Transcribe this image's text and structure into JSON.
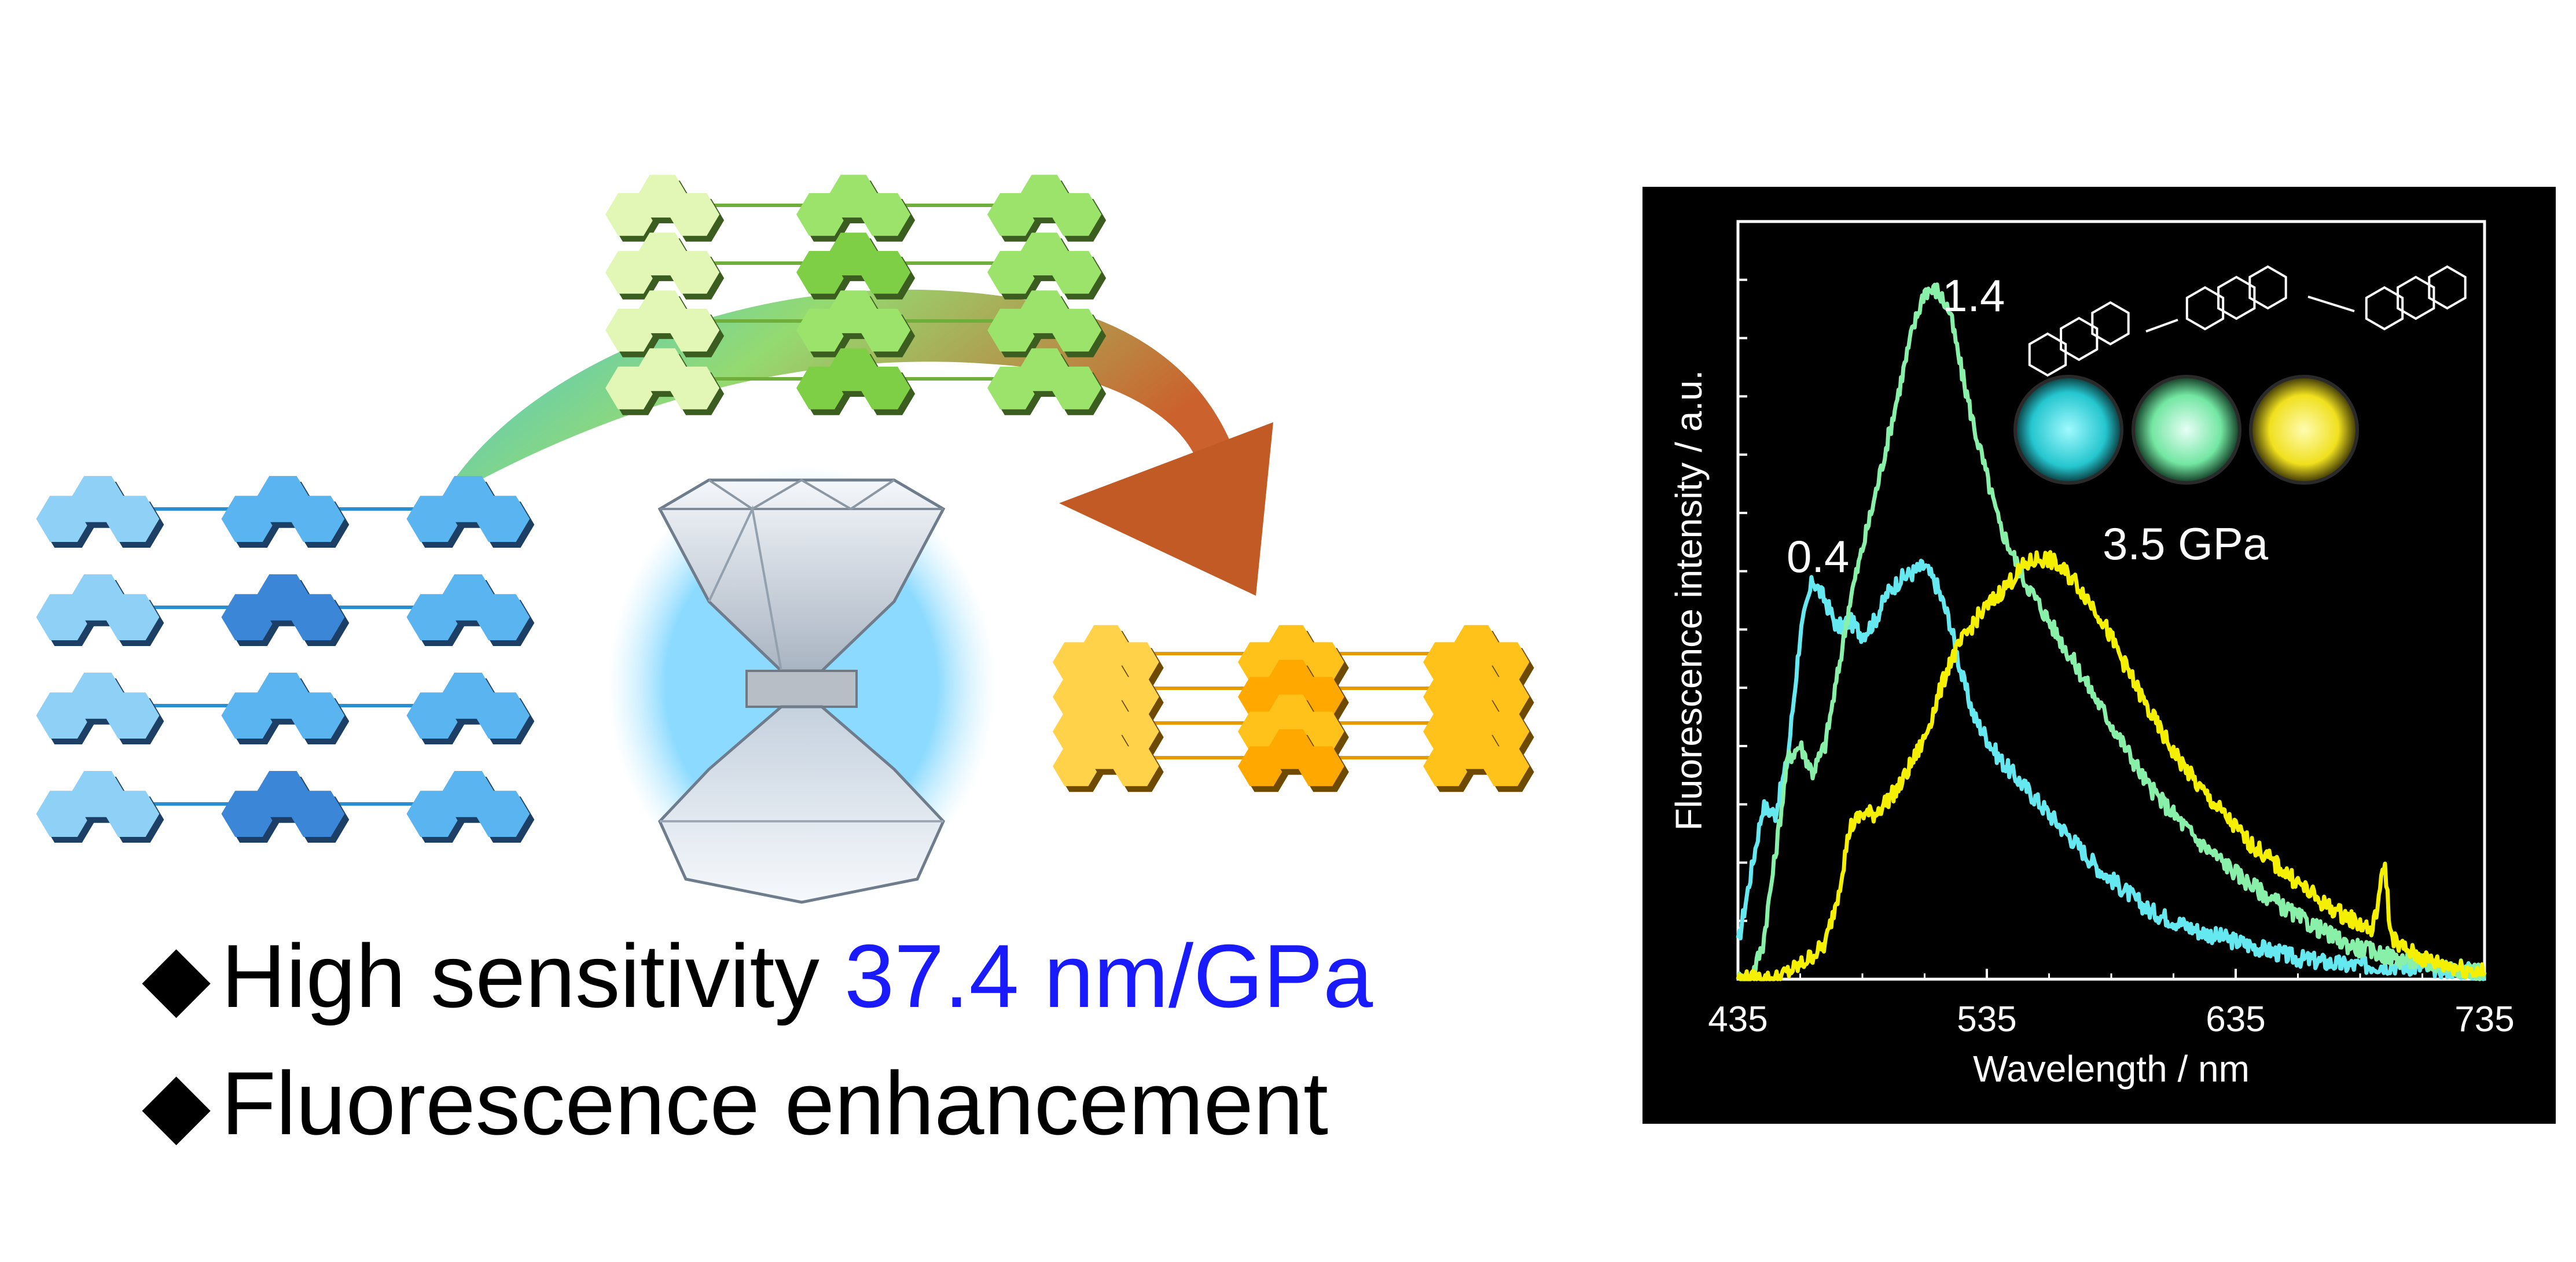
{
  "bullets": [
    {
      "marker": "◆",
      "text": "High sensitivity ",
      "highlight": "37.4 nm/GPa"
    },
    {
      "marker": "◆",
      "text": "Fluorescence enhancement",
      "highlight": ""
    }
  ],
  "colors": {
    "blue_stack": "#5ab4f0",
    "green_stack": "#9be36a",
    "yellow_stack": "#ffc21a",
    "highlight_text": "#1a1aff",
    "chart_bg": "#000000",
    "series_0_4": "#66e8f0",
    "series_1_4": "#88f0a8",
    "series_3_5": "#f4f000"
  },
  "icons": [
    "diamond-anvil-icon",
    "curved-arrow-icon",
    "anthracene-molecule-icon",
    "crystal-photo-icon"
  ],
  "chart_data": {
    "type": "line",
    "xlabel": "Wavelength / nm",
    "ylabel": "Fluorescence intensity / a.u.",
    "xlim": [
      435,
      735
    ],
    "xticks": [
      435,
      535,
      635,
      735
    ],
    "ylim": [
      0,
      1.1
    ],
    "grid": false,
    "series": [
      {
        "name": "0.4",
        "color": "#66e8f0",
        "x": [
          435,
          440,
          445,
          450,
          455,
          460,
          465,
          470,
          475,
          480,
          485,
          490,
          495,
          500,
          505,
          510,
          515,
          520,
          525,
          530,
          540,
          550,
          560,
          570,
          580,
          590,
          600,
          620,
          640,
          660,
          680,
          700,
          735
        ],
        "y": [
          0.05,
          0.15,
          0.25,
          0.24,
          0.32,
          0.5,
          0.58,
          0.55,
          0.51,
          0.52,
          0.5,
          0.52,
          0.56,
          0.58,
          0.59,
          0.6,
          0.57,
          0.52,
          0.44,
          0.38,
          0.32,
          0.28,
          0.24,
          0.2,
          0.16,
          0.13,
          0.1,
          0.07,
          0.05,
          0.03,
          0.02,
          0.02,
          0.01
        ]
      },
      {
        "name": "1.4",
        "color": "#88f0a8",
        "x": [
          435,
          440,
          445,
          450,
          455,
          460,
          465,
          470,
          475,
          480,
          490,
          500,
          505,
          510,
          515,
          520,
          525,
          530,
          535,
          540,
          545,
          550,
          560,
          570,
          580,
          590,
          600,
          610,
          620,
          640,
          660,
          680,
          700,
          735
        ],
        "y": [
          0.0,
          0.0,
          0.05,
          0.18,
          0.32,
          0.34,
          0.3,
          0.34,
          0.44,
          0.55,
          0.7,
          0.86,
          0.94,
          1.0,
          1.0,
          0.97,
          0.88,
          0.8,
          0.73,
          0.66,
          0.62,
          0.58,
          0.52,
          0.46,
          0.4,
          0.34,
          0.28,
          0.24,
          0.2,
          0.14,
          0.09,
          0.05,
          0.03,
          0.01
        ]
      },
      {
        "name": "3.5 GPa",
        "color": "#f4f000",
        "x": [
          435,
          450,
          460,
          470,
          475,
          480,
          485,
          490,
          500,
          510,
          520,
          530,
          540,
          550,
          555,
          560,
          570,
          580,
          590,
          600,
          610,
          620,
          630,
          640,
          650,
          660,
          670,
          680,
          690,
          695,
          697,
          700,
          710,
          720,
          735
        ],
        "y": [
          0.0,
          0.0,
          0.02,
          0.05,
          0.12,
          0.22,
          0.24,
          0.24,
          0.28,
          0.35,
          0.46,
          0.52,
          0.56,
          0.6,
          0.61,
          0.61,
          0.58,
          0.53,
          0.46,
          0.39,
          0.33,
          0.28,
          0.24,
          0.2,
          0.17,
          0.14,
          0.11,
          0.09,
          0.07,
          0.17,
          0.07,
          0.05,
          0.03,
          0.02,
          0.01
        ]
      }
    ],
    "annotations": [
      "0.4",
      "1.4",
      "3.5 GPa"
    ]
  }
}
